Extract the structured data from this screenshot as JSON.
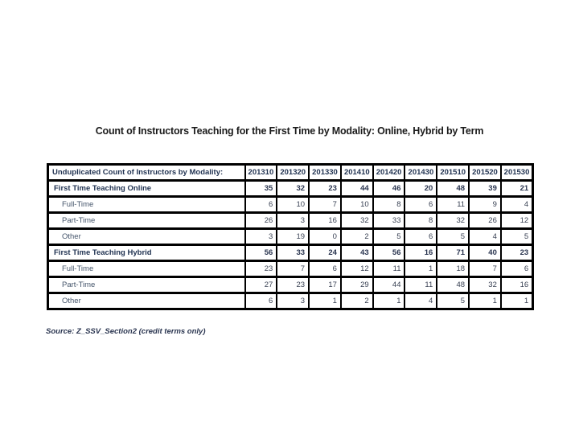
{
  "slide": {
    "title": "Count of Instructors Teaching for the First Time by Modality: Online, Hybrid by Term",
    "source_note": "Source: Z_SSV_Section2 (credit terms only)"
  },
  "colors": {
    "border": "#000000",
    "section_label": "#1f3150",
    "sub_label": "#44546a",
    "value_text": "#3a4254",
    "background": "#ffffff"
  },
  "chart_data": {
    "type": "table",
    "title": "Count of Instructors Teaching for the First Time by Modality: Online, Hybrid by Term",
    "header_label": "Unduplicated Count of Instructors by Modality:",
    "categories": [
      "201310",
      "201320",
      "201330",
      "201410",
      "201420",
      "201430",
      "201510",
      "201520",
      "201530"
    ],
    "rows": [
      {
        "label": "First Time Teaching Online",
        "style": "section",
        "values": [
          35,
          32,
          23,
          44,
          46,
          20,
          48,
          39,
          21
        ]
      },
      {
        "label": "Full-Time",
        "style": "sub",
        "values": [
          6,
          10,
          7,
          10,
          8,
          6,
          11,
          9,
          4
        ]
      },
      {
        "label": "Part-Time",
        "style": "sub",
        "values": [
          26,
          3,
          16,
          32,
          33,
          8,
          32,
          26,
          12
        ]
      },
      {
        "label": "Other",
        "style": "sub",
        "values": [
          3,
          19,
          0,
          2,
          5,
          6,
          5,
          4,
          5
        ]
      },
      {
        "label": "First Time Teaching Hybrid",
        "style": "section",
        "values": [
          56,
          33,
          24,
          43,
          56,
          16,
          71,
          40,
          23
        ]
      },
      {
        "label": "Full-Time",
        "style": "sub",
        "values": [
          23,
          7,
          6,
          12,
          11,
          1,
          18,
          7,
          6
        ]
      },
      {
        "label": "Part-Time",
        "style": "sub",
        "values": [
          27,
          23,
          17,
          29,
          44,
          11,
          48,
          32,
          16
        ]
      },
      {
        "label": "Other",
        "style": "sub",
        "values": [
          6,
          3,
          1,
          2,
          1,
          4,
          5,
          1,
          1
        ]
      }
    ]
  }
}
